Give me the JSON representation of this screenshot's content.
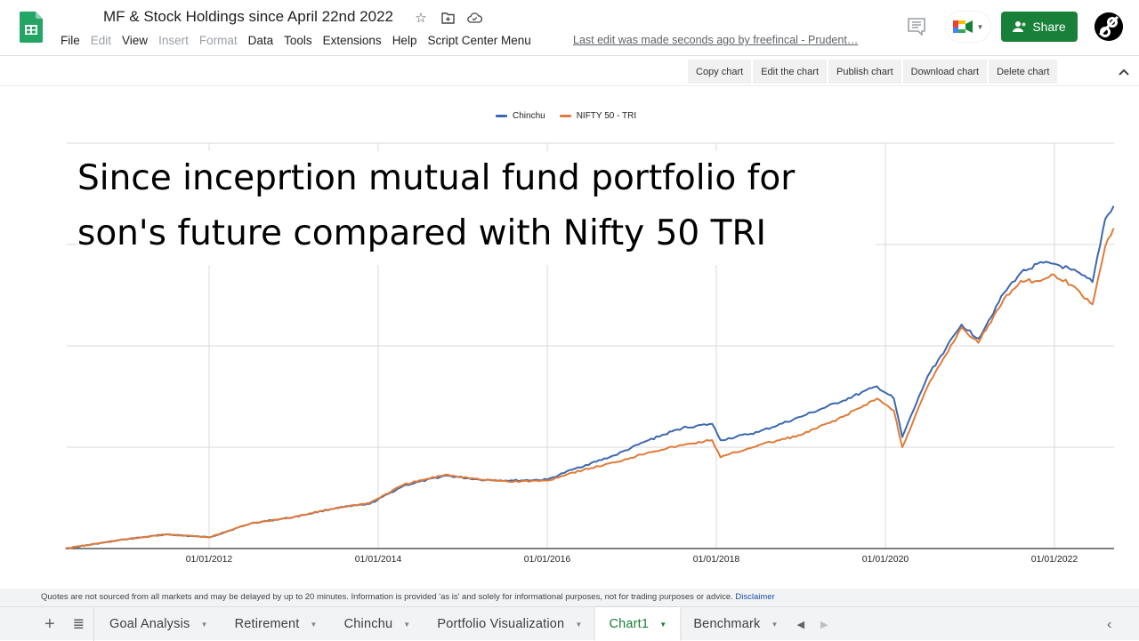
{
  "header": {
    "doc_title": "MF & Stock Holdings since April 22nd 2022",
    "menu": [
      {
        "label": "File",
        "enabled": true
      },
      {
        "label": "Edit",
        "enabled": false
      },
      {
        "label": "View",
        "enabled": true
      },
      {
        "label": "Insert",
        "enabled": false
      },
      {
        "label": "Format",
        "enabled": false
      },
      {
        "label": "Data",
        "enabled": true
      },
      {
        "label": "Tools",
        "enabled": true
      },
      {
        "label": "Extensions",
        "enabled": true
      },
      {
        "label": "Help",
        "enabled": true
      },
      {
        "label": "Script Center Menu",
        "enabled": true
      }
    ],
    "last_edit": "Last edit was made seconds ago by freefincal - Prudent…",
    "share_label": "Share",
    "icons": [
      "star-icon",
      "move-to-folder-icon",
      "cloud-status-icon",
      "comment-icon",
      "meet-icon",
      "person-icon"
    ],
    "brand_green": "#188038"
  },
  "chart_toolbar": {
    "buttons": [
      "Copy chart",
      "Edit the chart",
      "Publish chart",
      "Download chart",
      "Delete chart"
    ]
  },
  "chart_overlay_text": {
    "line1": "Since inceprtion mutual fund portfolio for",
    "line2": "son's future compared with Nifty 50 TRI"
  },
  "chart_data": {
    "type": "line",
    "title": "Since inceprtion mutual fund portfolio for son's future compared with Nifty 50 TRI",
    "xlabel": "",
    "ylabel": "",
    "y_tick_labels_visible": false,
    "y_units": "relative (gridline units, 0 = baseline, 4 = top gridline)",
    "ylim": [
      0,
      4
    ],
    "grid": true,
    "legend_position": "top",
    "x_tick_labels": [
      "01/01/2012",
      "01/01/2014",
      "01/01/2016",
      "01/01/2018",
      "01/01/2020",
      "01/01/2022"
    ],
    "x": [
      2010.3,
      2011.0,
      2011.5,
      2012.0,
      2012.5,
      2013.0,
      2013.5,
      2013.9,
      2014.3,
      2014.8,
      2015.2,
      2015.6,
      2016.0,
      2016.3,
      2016.8,
      2017.2,
      2017.6,
      2017.95,
      2018.05,
      2018.5,
      2019.0,
      2019.5,
      2019.9,
      2020.1,
      2020.2,
      2020.5,
      2020.9,
      2021.1,
      2021.4,
      2021.6,
      2021.8,
      2022.0,
      2022.2,
      2022.45,
      2022.6,
      2022.7
    ],
    "series": [
      {
        "name": "Chinchu",
        "color": "#3c68b0",
        "values": [
          0.0,
          0.09,
          0.14,
          0.11,
          0.25,
          0.31,
          0.4,
          0.44,
          0.62,
          0.72,
          0.68,
          0.67,
          0.68,
          0.78,
          0.92,
          1.07,
          1.19,
          1.23,
          1.07,
          1.15,
          1.3,
          1.46,
          1.6,
          1.48,
          1.1,
          1.7,
          2.21,
          2.07,
          2.52,
          2.72,
          2.81,
          2.81,
          2.75,
          2.63,
          3.25,
          3.38
        ]
      },
      {
        "name": "NIFTY 50 - TRI",
        "color": "#e07b39",
        "values": [
          0.0,
          0.09,
          0.14,
          0.11,
          0.25,
          0.31,
          0.4,
          0.45,
          0.63,
          0.73,
          0.68,
          0.66,
          0.67,
          0.75,
          0.85,
          0.95,
          1.02,
          1.07,
          0.9,
          1.02,
          1.12,
          1.3,
          1.48,
          1.36,
          1.0,
          1.6,
          2.18,
          2.03,
          2.46,
          2.64,
          2.64,
          2.7,
          2.6,
          2.41,
          2.98,
          3.16
        ]
      }
    ]
  },
  "disclaimer": {
    "text": "Quotes are not sourced from all markets and may be delayed by up to 20 minutes. Information is provided 'as is' and solely for informational purposes, not for trading purposes or advice.",
    "link": "Disclaimer"
  },
  "sheet_tabs": {
    "tabs": [
      {
        "label": "Goal Analysis",
        "active": false
      },
      {
        "label": "Retirement",
        "active": false
      },
      {
        "label": "Chinchu",
        "active": false
      },
      {
        "label": "Portfolio Visualization",
        "active": false
      },
      {
        "label": "Chart1",
        "active": true
      },
      {
        "label": "Benchmark",
        "active": false
      }
    ]
  }
}
